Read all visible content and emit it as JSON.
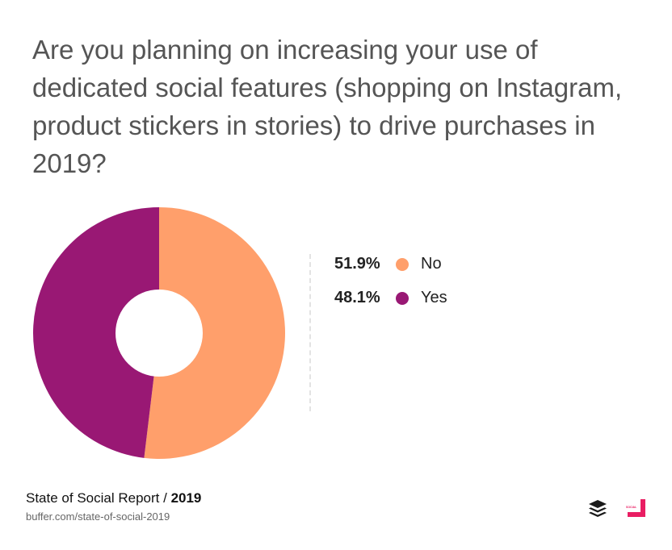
{
  "title": "Are you planning on increasing your use of dedicated social features (shopping on Instagram, product stickers in stories) to drive purchases in 2019?",
  "chart_data": {
    "type": "pie",
    "donut": true,
    "categories": [
      "No",
      "Yes"
    ],
    "values": [
      51.9,
      48.1
    ],
    "value_labels": [
      "51.9%",
      "48.1%"
    ],
    "colors": [
      "#FF9F6B",
      "#991874"
    ],
    "legend_position": "right"
  },
  "footer": {
    "report_label": "State of Social Report /",
    "report_year": "2019",
    "url": "buffer.com/state-of-social-2019"
  },
  "logos": {
    "buffer": "buffer-logo-icon",
    "social": "social-media-week-logo-icon",
    "social_text": "SOCIAL MEDIA WEEK"
  }
}
